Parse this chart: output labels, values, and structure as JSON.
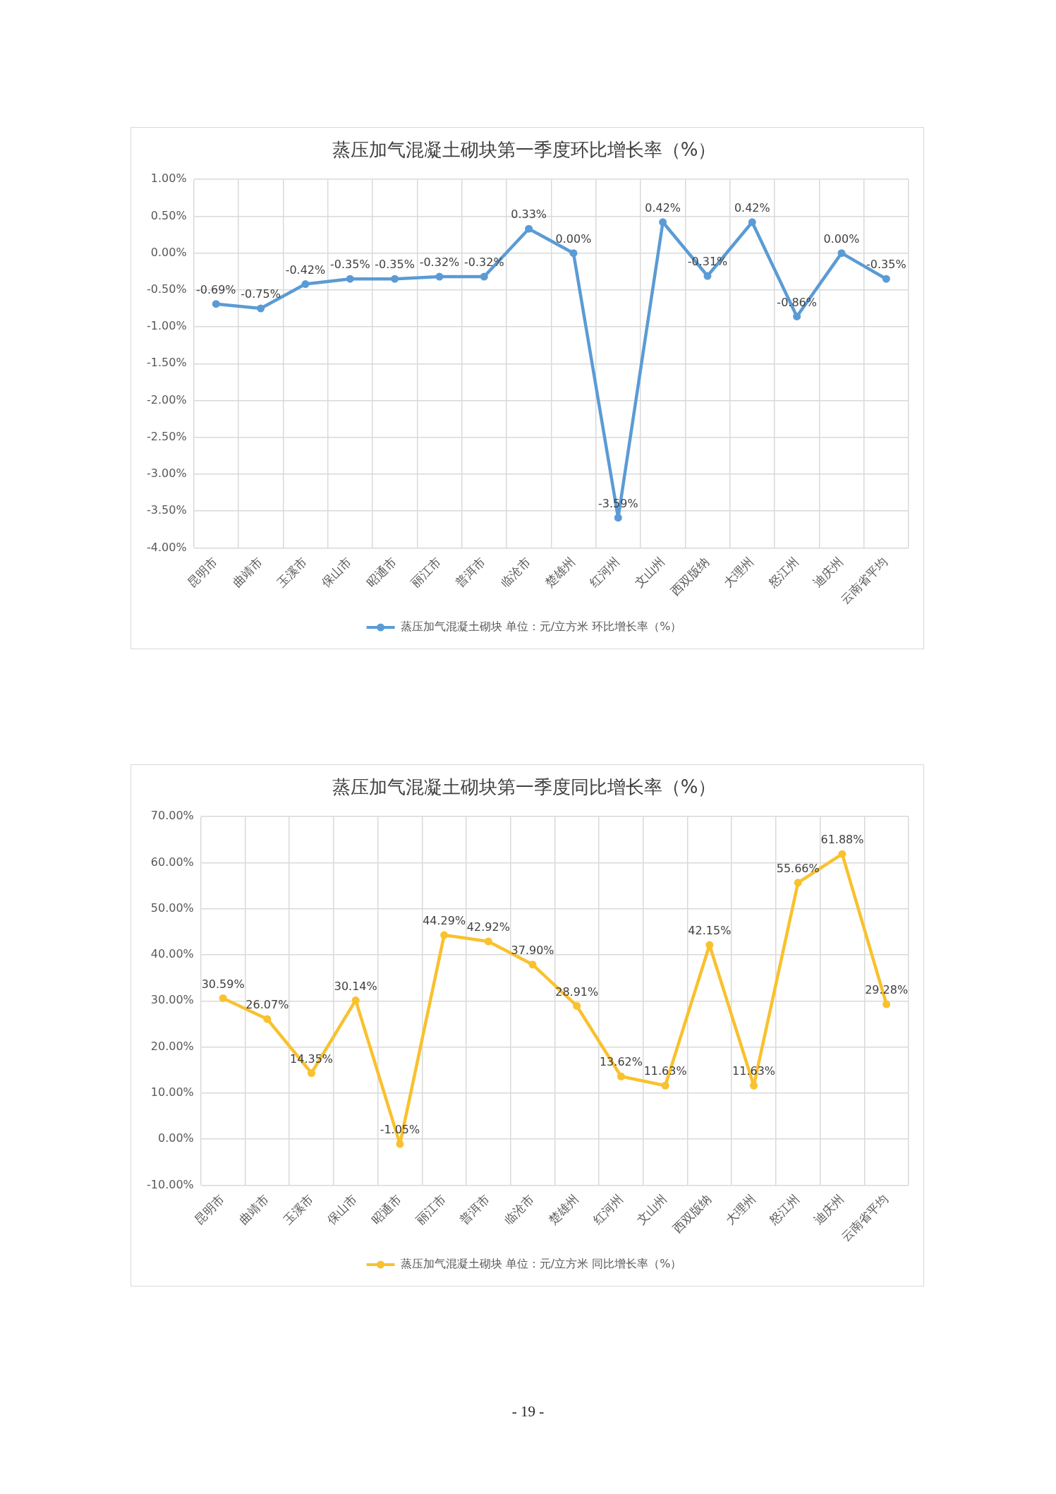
{
  "chart_data": [
    {
      "type": "line",
      "title": "蒸压加气混凝土砌块第一季度环比增长率（%）",
      "categories": [
        "昆明市",
        "曲靖市",
        "玉溪市",
        "保山市",
        "昭通市",
        "丽江市",
        "普洱市",
        "临沧市",
        "楚雄州",
        "红河州",
        "文山州",
        "西双版纳",
        "大理州",
        "怒江州",
        "迪庆州",
        "云南省平均"
      ],
      "series": [
        {
          "name": "蒸压加气混凝土砌块 单位：元/立方米 环比增长率（%）",
          "color": "#5b9bd5",
          "values": [
            -0.69,
            -0.75,
            -0.42,
            -0.35,
            -0.35,
            -0.32,
            -0.32,
            0.33,
            0.0,
            -3.59,
            0.42,
            -0.31,
            0.42,
            -0.86,
            0.0,
            -0.35
          ],
          "value_labels": [
            "-0.69%",
            "-0.75%",
            "-0.42%",
            "-0.35%",
            "-0.35%",
            "-0.32%",
            "-0.32%",
            "0.33%",
            "0.00%",
            "-3.59%",
            "0.42%",
            "-0.31%",
            "0.42%",
            "-0.86%",
            "0.00%",
            "-0.35%"
          ]
        }
      ],
      "ylim": [
        -4,
        1
      ],
      "yticks": [
        {
          "value": 1,
          "label": "1.00%"
        },
        {
          "value": 0.5,
          "label": "0.50%"
        },
        {
          "value": 0,
          "label": "0.00%"
        },
        {
          "value": -0.5,
          "label": "-0.50%"
        },
        {
          "value": -1,
          "label": "-1.00%"
        },
        {
          "value": -1.5,
          "label": "-1.50%"
        },
        {
          "value": -2,
          "label": "-2.00%"
        },
        {
          "value": -2.5,
          "label": "-2.50%"
        },
        {
          "value": -3,
          "label": "-3.00%"
        },
        {
          "value": -3.5,
          "label": "-3.50%"
        },
        {
          "value": -4,
          "label": "-4.00%"
        }
      ],
      "grid": true,
      "legend": "bottom",
      "marker": "circle",
      "line_style": "solid"
    },
    {
      "type": "line",
      "title": "蒸压加气混凝土砌块第一季度同比增长率（%）",
      "categories": [
        "昆明市",
        "曲靖市",
        "玉溪市",
        "保山市",
        "昭通市",
        "丽江市",
        "普洱市",
        "临沧市",
        "楚雄州",
        "红河州",
        "文山州",
        "西双版纳",
        "大理州",
        "怒江州",
        "迪庆州",
        "云南省平均"
      ],
      "series": [
        {
          "name": "蒸压加气混凝土砌块 单位：元/立方米 同比增长率（%）",
          "color": "#f9c12e",
          "values": [
            30.59,
            26.07,
            14.35,
            30.14,
            -1.05,
            44.29,
            42.92,
            37.9,
            28.91,
            13.62,
            11.63,
            42.15,
            11.63,
            55.66,
            61.88,
            29.28
          ],
          "value_labels": [
            "30.59%",
            "26.07%",
            "14.35%",
            "30.14%",
            "-1.05%",
            "44.29%",
            "42.92%",
            "37.90%",
            "28.91%",
            "13.62%",
            "11.63%",
            "42.15%",
            "11.63%",
            "55.66%",
            "61.88%",
            "29.28%"
          ]
        }
      ],
      "ylim": [
        -10,
        70
      ],
      "yticks": [
        {
          "value": 70,
          "label": "70.00%"
        },
        {
          "value": 60,
          "label": "60.00%"
        },
        {
          "value": 50,
          "label": "50.00%"
        },
        {
          "value": 40,
          "label": "40.00%"
        },
        {
          "value": 30,
          "label": "30.00%"
        },
        {
          "value": 20,
          "label": "20.00%"
        },
        {
          "value": 10,
          "label": "10.00%"
        },
        {
          "value": 0,
          "label": "0.00%"
        },
        {
          "value": -10,
          "label": "-10.00%"
        }
      ],
      "grid": true,
      "legend": "bottom",
      "marker": "circle",
      "line_style": "solid",
      "annotations": [
        "- 19 -"
      ]
    }
  ]
}
